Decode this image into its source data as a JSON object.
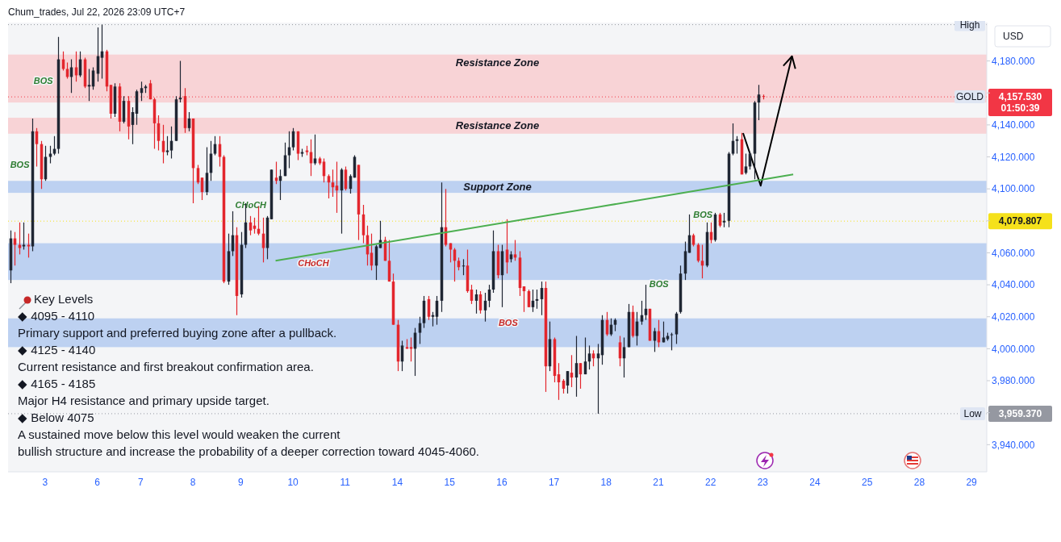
{
  "chart_data": {
    "type": "candlestick",
    "title": "Chum_trades, Jul 22, 2026 23:09 UTC+7",
    "ylabel": "USD",
    "categories": [
      null,
      null,
      null,
      null,
      null,
      null,
      null,
      null,
      "3",
      null,
      null,
      null,
      null,
      null,
      null,
      null,
      null,
      null,
      null,
      null,
      "6",
      null,
      null,
      null,
      null,
      null,
      null,
      null,
      null,
      null,
      "7",
      null,
      null,
      null,
      null,
      null,
      null,
      null,
      null,
      null,
      null,
      null,
      "8",
      null,
      null,
      null,
      null,
      null,
      null,
      null,
      null,
      null,
      null,
      "9",
      null,
      null,
      null,
      null,
      null,
      null,
      null,
      null,
      null,
      null,
      null,
      "10",
      null,
      null,
      null,
      null,
      null,
      null,
      null,
      null,
      null,
      null,
      null,
      "11",
      null,
      null,
      null,
      null,
      null,
      null,
      null,
      null,
      null,
      null,
      null,
      "14",
      null,
      null,
      null,
      null,
      null,
      null,
      null,
      null,
      null,
      null,
      null,
      "15",
      null,
      null,
      null,
      null,
      null,
      null,
      null,
      null,
      null,
      null,
      null,
      "16",
      null,
      null,
      null,
      null,
      null,
      null,
      null,
      null,
      null,
      null,
      null,
      "17",
      null,
      null,
      null,
      null,
      null,
      null,
      null,
      null,
      null,
      null,
      null,
      "18",
      null,
      null,
      null,
      null,
      null,
      null,
      null,
      null,
      null,
      null,
      null,
      "21",
      null,
      null,
      null,
      null,
      null,
      null,
      null,
      null,
      null,
      null,
      null,
      "22",
      null,
      null,
      null,
      null,
      null,
      null,
      null,
      null,
      null,
      null,
      null,
      "23",
      null,
      null,
      null,
      null,
      null,
      null,
      null,
      null,
      null,
      null,
      null,
      "24",
      null,
      null,
      null,
      null,
      null,
      null,
      null,
      null,
      null,
      null,
      null,
      "25",
      null,
      null,
      null,
      null,
      null,
      null,
      null,
      null,
      null,
      null,
      null,
      "28",
      null,
      null,
      null,
      null,
      null,
      null,
      null,
      null,
      null,
      null,
      null,
      "29",
      null,
      null,
      null
    ],
    "ohlc": [
      [
        4049,
        4074,
        4041,
        4069
      ],
      [
        4069,
        4073,
        4052,
        4065
      ],
      [
        4065,
        4079,
        4059,
        4063
      ],
      [
        4064,
        4079,
        4062,
        4065
      ],
      [
        4065,
        4072,
        4057,
        4064
      ],
      [
        4064,
        4144,
        4061,
        4136
      ],
      [
        4136,
        4138,
        4114,
        4128
      ],
      [
        4128,
        4130,
        4100,
        4106
      ],
      [
        4106,
        4127,
        4105,
        4120
      ],
      [
        4120,
        4127,
        4116,
        4122
      ],
      [
        4122,
        4133,
        4121,
        4125
      ],
      [
        4125,
        4195,
        4122,
        4181
      ],
      [
        4181,
        4186,
        4174,
        4175
      ],
      [
        4175,
        4179,
        4169,
        4170
      ],
      [
        4170,
        4181,
        4160,
        4176
      ],
      [
        4176,
        4186,
        4167,
        4171
      ],
      [
        4171,
        4186,
        4170,
        4181
      ],
      [
        4181,
        4182,
        4163,
        4164
      ],
      [
        4164,
        4175,
        4155,
        4165
      ],
      [
        4164,
        4176,
        4162,
        4174
      ],
      [
        4172,
        4201,
        4167,
        4183
      ],
      [
        4182,
        4202.7,
        4169,
        4186
      ],
      [
        4186,
        4187,
        4161,
        4164
      ],
      [
        4165,
        4165,
        4144,
        4147
      ],
      [
        4147,
        4166,
        4145,
        4164
      ],
      [
        4164,
        4166,
        4136,
        4142
      ],
      [
        4142,
        4158,
        4141,
        4155
      ],
      [
        4155,
        4158,
        4131,
        4139
      ],
      [
        4140,
        4151,
        4128,
        4148
      ],
      [
        4147,
        4162,
        4140,
        4161
      ],
      [
        4160,
        4167,
        4155,
        4163
      ],
      [
        4163,
        4165,
        4160,
        4164
      ],
      [
        4166,
        4168,
        4156,
        4156
      ],
      [
        4156,
        4157,
        4125,
        4141
      ],
      [
        4141,
        4146,
        4124,
        4130
      ],
      [
        4130,
        4140,
        4116,
        4123
      ],
      [
        4123,
        4133,
        4121,
        4124
      ],
      [
        4124,
        4139,
        4119,
        4130
      ],
      [
        4130,
        4158,
        4130,
        4156
      ],
      [
        4156,
        4180,
        4154,
        4157
      ],
      [
        4158,
        4163,
        4135,
        4138
      ],
      [
        4138,
        4148,
        4136,
        4144
      ],
      [
        4144,
        4144,
        4091,
        4113
      ],
      [
        4113,
        4115,
        4103,
        4104
      ],
      [
        4107,
        4107,
        4093,
        4098
      ],
      [
        4098,
        4126,
        4096,
        4110
      ],
      [
        4110,
        4130,
        4105,
        4122
      ],
      [
        4122,
        4133,
        4121,
        4128
      ],
      [
        4128,
        4133,
        4114,
        4120
      ],
      [
        4120,
        4121,
        4041,
        4042
      ],
      [
        4042,
        4072,
        4040,
        4061
      ],
      [
        4061,
        4086,
        4058,
        4071
      ],
      [
        4071,
        4076,
        4021,
        4033
      ],
      [
        4034,
        4073,
        4032,
        4065
      ],
      [
        4065,
        4091,
        4063,
        4079
      ],
      [
        4079,
        4083,
        4071,
        4074
      ],
      [
        4077,
        4082,
        4072,
        4075
      ],
      [
        4075,
        4089,
        4071,
        4072
      ],
      [
        4072,
        4082,
        4054,
        4063
      ],
      [
        4063,
        4083,
        4056,
        4082
      ],
      [
        4081,
        4112,
        4081,
        4112
      ],
      [
        4107,
        4117,
        4103,
        4105
      ],
      [
        4105,
        4112,
        4093,
        4108
      ],
      [
        4108,
        4129,
        4108,
        4121
      ],
      [
        4121,
        4136,
        4113,
        4126
      ],
      [
        4126,
        4138,
        4124,
        4136
      ],
      [
        4136,
        4136,
        4118,
        4122
      ],
      [
        4122,
        4125,
        4120,
        4123
      ],
      [
        4124,
        4127,
        4121,
        4123
      ],
      [
        4123,
        4131,
        4108,
        4116
      ],
      [
        4116,
        4134,
        4115,
        4119
      ],
      [
        4119,
        4120,
        4115,
        4116
      ],
      [
        4117,
        4119,
        4104,
        4108
      ],
      [
        4108,
        4109,
        4094,
        4104
      ],
      [
        4104,
        4112,
        4095,
        4101
      ],
      [
        4102,
        4117,
        4085,
        4099
      ],
      [
        4099,
        4113,
        4072,
        4112
      ],
      [
        4112,
        4114,
        4099,
        4100
      ],
      [
        4100,
        4109,
        4097,
        4108
      ],
      [
        4107,
        4121,
        4107,
        4120
      ],
      [
        4115,
        4115,
        4068,
        4084
      ],
      [
        4084,
        4090,
        4066,
        4071
      ],
      [
        4071,
        4077,
        4052,
        4059
      ],
      [
        4060,
        4072,
        4049,
        4052
      ],
      [
        4052,
        4065,
        4043,
        4064
      ],
      [
        4063,
        4080,
        4063,
        4068
      ],
      [
        4068,
        4070,
        4055,
        4055
      ],
      [
        4055,
        4068,
        4042,
        4042
      ],
      [
        4042,
        4047,
        4015,
        4015
      ],
      [
        4015,
        4018,
        3986,
        3992
      ],
      [
        3992,
        4005,
        3986,
        4002
      ],
      [
        4001,
        4006,
        4000,
        4000
      ],
      [
        4001,
        4007,
        3992,
        4000
      ],
      [
        4000,
        4013,
        3983,
        4010
      ],
      [
        4010,
        4020,
        4003,
        4016
      ],
      [
        4016,
        4033,
        4013,
        4030
      ],
      [
        4031,
        4033,
        4018,
        4020
      ],
      [
        4020,
        4023,
        4014,
        4021
      ],
      [
        4020,
        4033,
        4015,
        4030
      ],
      [
        4030,
        4104,
        4023,
        4076
      ],
      [
        4076,
        4100,
        4064,
        4065
      ],
      [
        4066,
        4066,
        4054,
        4062
      ],
      [
        4062,
        4063,
        4042,
        4055
      ],
      [
        4055,
        4057,
        4049,
        4051
      ],
      [
        4052,
        4056,
        4046,
        4052
      ],
      [
        4052,
        4062,
        4035,
        4036
      ],
      [
        4037,
        4040,
        4028,
        4030
      ],
      [
        4030,
        4037,
        4022,
        4034
      ],
      [
        4034,
        4036,
        4022,
        4024
      ],
      [
        4024,
        4035,
        4017,
        4030
      ],
      [
        4030,
        4040,
        4026,
        4037
      ],
      [
        4037,
        4074,
        4035,
        4061
      ],
      [
        4061,
        4065,
        4044,
        4046
      ],
      [
        4046,
        4065,
        4026,
        4061
      ],
      [
        4062,
        4081,
        4047,
        4054
      ],
      [
        4056,
        4061,
        4054,
        4059
      ],
      [
        4059,
        4068,
        4055,
        4057
      ],
      [
        4057,
        4061,
        4033,
        4038
      ],
      [
        4039,
        4039,
        4023,
        4036
      ],
      [
        4036,
        4037,
        4026,
        4026
      ],
      [
        4026,
        4037,
        4023,
        4030
      ],
      [
        4030,
        4037,
        4025,
        4031
      ],
      [
        4031,
        4042,
        4021,
        4038
      ],
      [
        4038,
        4042,
        3973,
        3989
      ],
      [
        3989,
        4017,
        3986,
        4006
      ],
      [
        4006,
        4007,
        3979,
        3983
      ],
      [
        3984,
        3991,
        3968,
        3979
      ],
      [
        3980,
        3981,
        3972,
        3975
      ],
      [
        3977,
        3986,
        3972,
        3986
      ],
      [
        3985,
        3996,
        3976,
        3982
      ],
      [
        3982,
        4008,
        3970,
        3991
      ],
      [
        3991,
        3991,
        3975,
        3984
      ],
      [
        3984,
        4007,
        3984,
        3992
      ],
      [
        3992,
        4002,
        3987,
        3997
      ],
      [
        3997,
        3999,
        3989,
        3994
      ],
      [
        3994,
        4003,
        3959.37,
        3997
      ],
      [
        3996,
        4021,
        3990,
        4018
      ],
      [
        4018,
        4023,
        4008,
        4009
      ],
      [
        4009,
        4019,
        4008,
        4015
      ],
      [
        4015,
        4019,
        4011,
        4018
      ],
      [
        4004,
        4008,
        3989,
        3994
      ],
      [
        3994,
        4007,
        3982,
        4001
      ],
      [
        4001,
        4028,
        4001,
        4023
      ],
      [
        4023,
        4027,
        4007,
        4008
      ],
      [
        4008,
        4023,
        4002,
        4017
      ],
      [
        4017,
        4030,
        4015,
        4021
      ],
      [
        4021,
        4040,
        4018,
        4025
      ],
      [
        4025,
        4025,
        4005,
        4005
      ],
      [
        4005,
        4013,
        3998,
        4011
      ],
      [
        4011,
        4018,
        4001,
        4004
      ],
      [
        4004,
        4017,
        4004,
        4007
      ],
      [
        4006,
        4010,
        4005,
        4008
      ],
      [
        4009,
        4010,
        3999,
        4009
      ],
      [
        4009,
        4023,
        4003,
        4022
      ],
      [
        4023,
        4052,
        4022,
        4047
      ],
      [
        4047,
        4067,
        4043,
        4061
      ],
      [
        4060,
        4084,
        4060,
        4071
      ],
      [
        4071,
        4072,
        4064,
        4065
      ],
      [
        4065,
        4066,
        4054,
        4055
      ],
      [
        4055,
        4065,
        4044,
        4052
      ],
      [
        4052,
        4079,
        4051,
        4073
      ],
      [
        4073,
        4079,
        4066,
        4068
      ],
      [
        4068,
        4085,
        4067,
        4084
      ],
      [
        4084,
        4085,
        4076,
        4077
      ],
      [
        4079,
        4085,
        4076,
        4080
      ],
      [
        4080,
        4123,
        4076,
        4122
      ],
      [
        4122,
        4141,
        4121,
        4130
      ],
      [
        4130,
        4133,
        4122,
        4131
      ],
      [
        4131,
        4135,
        4109,
        4109
      ],
      [
        4110,
        4122,
        4109,
        4114
      ],
      [
        4114,
        4123,
        4112,
        4122
      ],
      [
        4122,
        4155,
        4106,
        4154
      ],
      [
        4154,
        4165,
        4143,
        4159
      ],
      [
        4158,
        4159,
        4156,
        4157.53
      ],
      null,
      null,
      null,
      null,
      null,
      null,
      null,
      null,
      null,
      null,
      null,
      null,
      null,
      null,
      null,
      null,
      null,
      null,
      null,
      null,
      null,
      null,
      null,
      null,
      null,
      null,
      null,
      null,
      null,
      null,
      null,
      null,
      null,
      null,
      null,
      null,
      null,
      null,
      null,
      null,
      null,
      null,
      null,
      null,
      null,
      null,
      null,
      null,
      null,
      null,
      null
    ],
    "colors": [
      "#1f2633",
      "#e3262d",
      "#e3262d",
      "#1f2633",
      "#e3262d",
      "#1f2633",
      "#e3262d",
      "#e3262d",
      "#1f2633",
      "#1f2633",
      "#1f2633",
      "#1f2633",
      "#e3262d",
      "#e3262d",
      "#1f2633",
      "#e3262d",
      "#1f2633",
      "#e3262d",
      "#1f2633",
      "#1f2633",
      "#1f2633",
      "#1f2633",
      "#e3262d",
      "#e3262d",
      "#1f2633",
      "#e3262d",
      "#1f2633",
      "#e3262d",
      "#1f2633",
      "#1f2633",
      "#1f2633",
      "#1f2633",
      "#e3262d",
      "#e3262d",
      "#e3262d",
      "#e3262d",
      "#1f2633",
      "#1f2633",
      "#1f2633",
      "#1f2633",
      "#e3262d",
      "#1f2633",
      "#e3262d",
      "#e3262d",
      "#e3262d",
      "#1f2633",
      "#1f2633",
      "#1f2633",
      "#e3262d",
      "#e3262d",
      "#1f2633",
      "#1f2633",
      "#e3262d",
      "#1f2633",
      "#1f2633",
      "#e3262d",
      "#e3262d",
      "#e3262d",
      "#e3262d",
      "#1f2633",
      "#1f2633",
      "#e3262d",
      "#1f2633",
      "#1f2633",
      "#1f2633",
      "#1f2633",
      "#e3262d",
      "#1f2633",
      "#e3262d",
      "#e3262d",
      "#1f2633",
      "#e3262d",
      "#e3262d",
      "#e3262d",
      "#e3262d",
      "#e3262d",
      "#1f2633",
      "#e3262d",
      "#1f2633",
      "#1f2633",
      "#e3262d",
      "#e3262d",
      "#e3262d",
      "#e3262d",
      "#1f2633",
      "#1f2633",
      "#e3262d",
      "#e3262d",
      "#e3262d",
      "#e3262d",
      "#1f2633",
      "#e3262d",
      "#e3262d",
      "#1f2633",
      "#1f2633",
      "#1f2633",
      "#e3262d",
      "#1f2633",
      "#1f2633",
      "#1f2633",
      "#e3262d",
      "#e3262d",
      "#e3262d",
      "#e3262d",
      "#1f2633",
      "#e3262d",
      "#e3262d",
      "#1f2633",
      "#e3262d",
      "#1f2633",
      "#1f2633",
      "#1f2633",
      "#e3262d",
      "#1f2633",
      "#e3262d",
      "#1f2633",
      "#e3262d",
      "#e3262d",
      "#e3262d",
      "#e3262d",
      "#1f2633",
      "#1f2633",
      "#1f2633",
      "#e3262d",
      "#1f2633",
      "#e3262d",
      "#e3262d",
      "#e3262d",
      "#1f2633",
      "#e3262d",
      "#1f2633",
      "#e3262d",
      "#1f2633",
      "#1f2633",
      "#e3262d",
      "#1f2633",
      "#1f2633",
      "#e3262d",
      "#1f2633",
      "#1f2633",
      "#e3262d",
      "#1f2633",
      "#1f2633",
      "#e3262d",
      "#1f2633",
      "#1f2633",
      "#1f2633",
      "#e3262d",
      "#1f2633",
      "#e3262d",
      "#1f2633",
      "#1f2633",
      "#1f2633",
      "#1f2633",
      "#1f2633",
      "#1f2633",
      "#1f2633",
      "#e3262d",
      "#e3262d",
      "#e3262d",
      "#1f2633",
      "#e3262d",
      "#1f2633",
      "#e3262d",
      "#1f2633",
      "#1f2633",
      "#1f2633",
      "#1f2633",
      "#e3262d",
      "#1f2633",
      "#1f2633",
      "#1f2633",
      "#1f2633",
      "#e3262d",
      null,
      null,
      null,
      null,
      null,
      null,
      null,
      null,
      null,
      null,
      null,
      null,
      null,
      null,
      null,
      null,
      null,
      null,
      null,
      null,
      null,
      null,
      null,
      null,
      null,
      null,
      null,
      null,
      null,
      null,
      null,
      null,
      null,
      null,
      null,
      null,
      null,
      null,
      null,
      null,
      null,
      null,
      null,
      null,
      null,
      null,
      null,
      null,
      null,
      null,
      null
    ],
    "series": [
      {
        "type": "line",
        "color": "#4caf50",
        "values": [
          null,
          null,
          null,
          null,
          null,
          null,
          null,
          null,
          null,
          null,
          null,
          null,
          null,
          null,
          null,
          null,
          null,
          null,
          null,
          null,
          null,
          null,
          null,
          null,
          null,
          null,
          null,
          null,
          null,
          null,
          null,
          null,
          null,
          null,
          null,
          null,
          null,
          null,
          null,
          null,
          null,
          null,
          null,
          null,
          null,
          null,
          null,
          null,
          null,
          null,
          null,
          null,
          null,
          null,
          null,
          null,
          null,
          null,
          null,
          null,
          null,
          4055,
          null,
          null,
          null,
          null,
          null,
          null,
          null,
          null,
          null,
          null,
          null,
          null,
          null,
          null,
          null,
          null,
          null,
          null,
          null,
          null,
          null,
          null,
          null,
          null,
          null,
          null,
          null,
          null,
          null,
          null,
          null,
          null,
          null,
          null,
          null,
          null,
          null,
          null,
          null,
          null,
          null,
          null,
          null,
          null,
          null,
          null,
          null,
          null,
          null,
          null,
          null,
          null,
          null,
          null,
          null,
          null,
          null,
          null,
          null,
          null,
          null,
          null,
          null,
          null,
          null,
          null,
          null,
          null,
          null,
          null,
          null,
          null,
          null,
          null,
          null,
          null,
          null,
          null,
          null,
          null,
          null,
          null,
          null,
          null,
          null,
          null,
          null,
          null,
          null,
          null,
          null,
          null,
          null,
          null,
          null,
          null,
          null,
          null,
          null,
          null,
          null,
          null,
          null,
          null,
          null,
          null,
          null,
          null,
          null,
          null,
          null,
          null,
          null,
          null,
          null,
          null,
          null,
          null,
          4109,
          null,
          null,
          null,
          null,
          null,
          null,
          null,
          null,
          null,
          null,
          null,
          null,
          null,
          null,
          null,
          null,
          null,
          null,
          null,
          null,
          null,
          null,
          null,
          null,
          null,
          null,
          null,
          null,
          null,
          null,
          null,
          null,
          null,
          null,
          null,
          null,
          null,
          null,
          null,
          null,
          null,
          null,
          null,
          null
        ]
      }
    ],
    "ylim": [
      3923,
      4204
    ],
    "yticks": [
      {
        "value": 3940,
        "label": "3,940.000"
      },
      {
        "value": 3960,
        "label": null
      },
      {
        "value": 3980,
        "label": "3,980.000"
      },
      {
        "value": 4000,
        "label": "4,000.000"
      },
      {
        "value": 4020,
        "label": "4,020.000"
      },
      {
        "value": 4040,
        "label": "4,040.000"
      },
      {
        "value": 4060,
        "label": "4,060.000"
      },
      {
        "value": 4080,
        "label": null
      },
      {
        "value": 4100,
        "label": "4,100.000"
      },
      {
        "value": 4120,
        "label": "4,120.000"
      },
      {
        "value": 4140,
        "label": "4,140.000"
      },
      {
        "value": 4160,
        "label": null
      },
      {
        "value": 4180,
        "label": "4,180.000"
      }
    ],
    "bands": [
      {
        "axis": "y",
        "from": 4154,
        "to": 4184,
        "label": "Resistance Zone",
        "color": "#f8d3d6"
      },
      {
        "axis": "y",
        "from": 4134.5,
        "to": 4144.5,
        "label": "Resistance Zone",
        "color": "#f8d3d6"
      },
      {
        "axis": "y",
        "from": 4097.5,
        "to": 4105,
        "label": "Support Zone",
        "color": "#bdd1f1"
      },
      {
        "axis": "y",
        "from": 4043,
        "to": 4066,
        "color": "#bdd1f1"
      },
      {
        "axis": "y",
        "from": 4001,
        "to": 4019,
        "color": "#bdd1f1"
      }
    ],
    "ref_lines": [
      {
        "axis": "y",
        "value": 4202.7,
        "color": "#9598a1",
        "line_style": "dotted"
      },
      {
        "axis": "y",
        "value": 3959.37,
        "label": "3,959.370",
        "color": "#9598a1",
        "line_style": "dotted"
      },
      {
        "axis": "y",
        "value": 4157.53,
        "label": "4,157.530\n01:50:39",
        "color": "#f23645",
        "line_style": "dotted"
      },
      {
        "axis": "y",
        "value": 4079.807,
        "label": "4,079.807",
        "color": "#f5e11b",
        "line_style": "dotted"
      }
    ],
    "annotations": [
      "BOS",
      "BOS",
      "CHoCH",
      "CHoCH",
      "BOS",
      "BOS",
      "BOS",
      {
        "text": "High",
        "y": 4202.7
      },
      {
        "text": "Low",
        "y": 3959.37
      },
      {
        "text": "GOLD",
        "y": 4157.53
      },
      "Key Levels",
      "◆ 4095 - 4110",
      "Primary support and preferred buying zone after a pullback.",
      "◆ 4125 - 4140",
      "Current resistance and first breakout confirmation area.",
      "◆ 4165 - 4185",
      "Major H4 resistance and primary upside target.",
      "◆ Below 4075",
      "A sustained move below this level would weaken the current",
      "bullish structure and increase the probability of a deeper correction toward 4045-4060."
    ]
  }
}
